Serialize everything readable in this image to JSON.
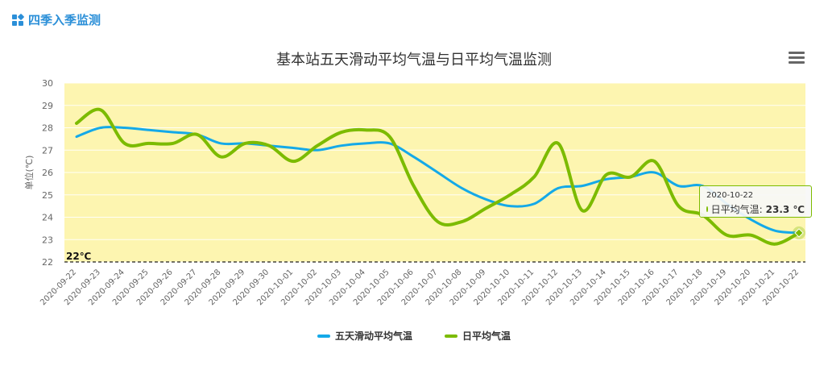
{
  "header": {
    "title": "四季入季监测",
    "icon": "grid-icon"
  },
  "menu": {
    "icon": "hamburger-menu-icon"
  },
  "chart_data": {
    "type": "line",
    "title": "基本站五天滑动平均气温与日平均气温监测",
    "ylabel": "单位(℃)",
    "ylim": [
      22,
      30
    ],
    "yticks": [
      "22",
      "23",
      "24",
      "25",
      "26",
      "27",
      "28",
      "29",
      "30"
    ],
    "plot_background": "#fdf5b0",
    "categories": [
      "2020-09-22",
      "2020-09-23",
      "2020-09-24",
      "2020-09-25",
      "2020-09-26",
      "2020-09-27",
      "2020-09-28",
      "2020-09-29",
      "2020-09-30",
      "2020-10-01",
      "2020-10-02",
      "2020-10-03",
      "2020-10-04",
      "2020-10-05",
      "2020-10-06",
      "2020-10-07",
      "2020-10-08",
      "2020-10-09",
      "2020-10-10",
      "2020-10-11",
      "2020-10-12",
      "2020-10-13",
      "2020-10-14",
      "2020-10-15",
      "2020-10-16",
      "2020-10-17",
      "2020-10-18",
      "2020-10-19",
      "2020-10-20",
      "2020-10-21",
      "2020-10-22"
    ],
    "series": [
      {
        "name": "五天滑动平均气温",
        "color": "#14a9e8",
        "values": [
          27.6,
          28.0,
          28.0,
          27.9,
          27.8,
          27.7,
          27.3,
          27.3,
          27.2,
          27.1,
          27.0,
          27.2,
          27.3,
          27.3,
          26.7,
          26.0,
          25.3,
          24.8,
          24.5,
          24.6,
          25.3,
          25.4,
          25.7,
          25.8,
          26.0,
          25.4,
          25.4,
          24.6,
          23.9,
          23.4,
          23.3
        ]
      },
      {
        "name": "日平均气温",
        "color": "#7cbb00",
        "values": [
          28.2,
          28.8,
          27.3,
          27.3,
          27.3,
          27.7,
          26.7,
          27.3,
          27.2,
          26.5,
          27.2,
          27.8,
          27.9,
          27.6,
          25.4,
          23.8,
          23.8,
          24.4,
          25.0,
          25.8,
          27.3,
          24.3,
          25.9,
          25.8,
          26.5,
          24.5,
          24.1,
          23.2,
          23.2,
          22.8,
          23.3
        ]
      }
    ],
    "threshold": {
      "value": 22,
      "label": "22℃"
    },
    "legend_position": "bottom-center",
    "tooltip": {
      "date": "2020-10-22",
      "series": "日平均气温",
      "label": "日平均气温:",
      "value": "23.3 ℃"
    }
  }
}
